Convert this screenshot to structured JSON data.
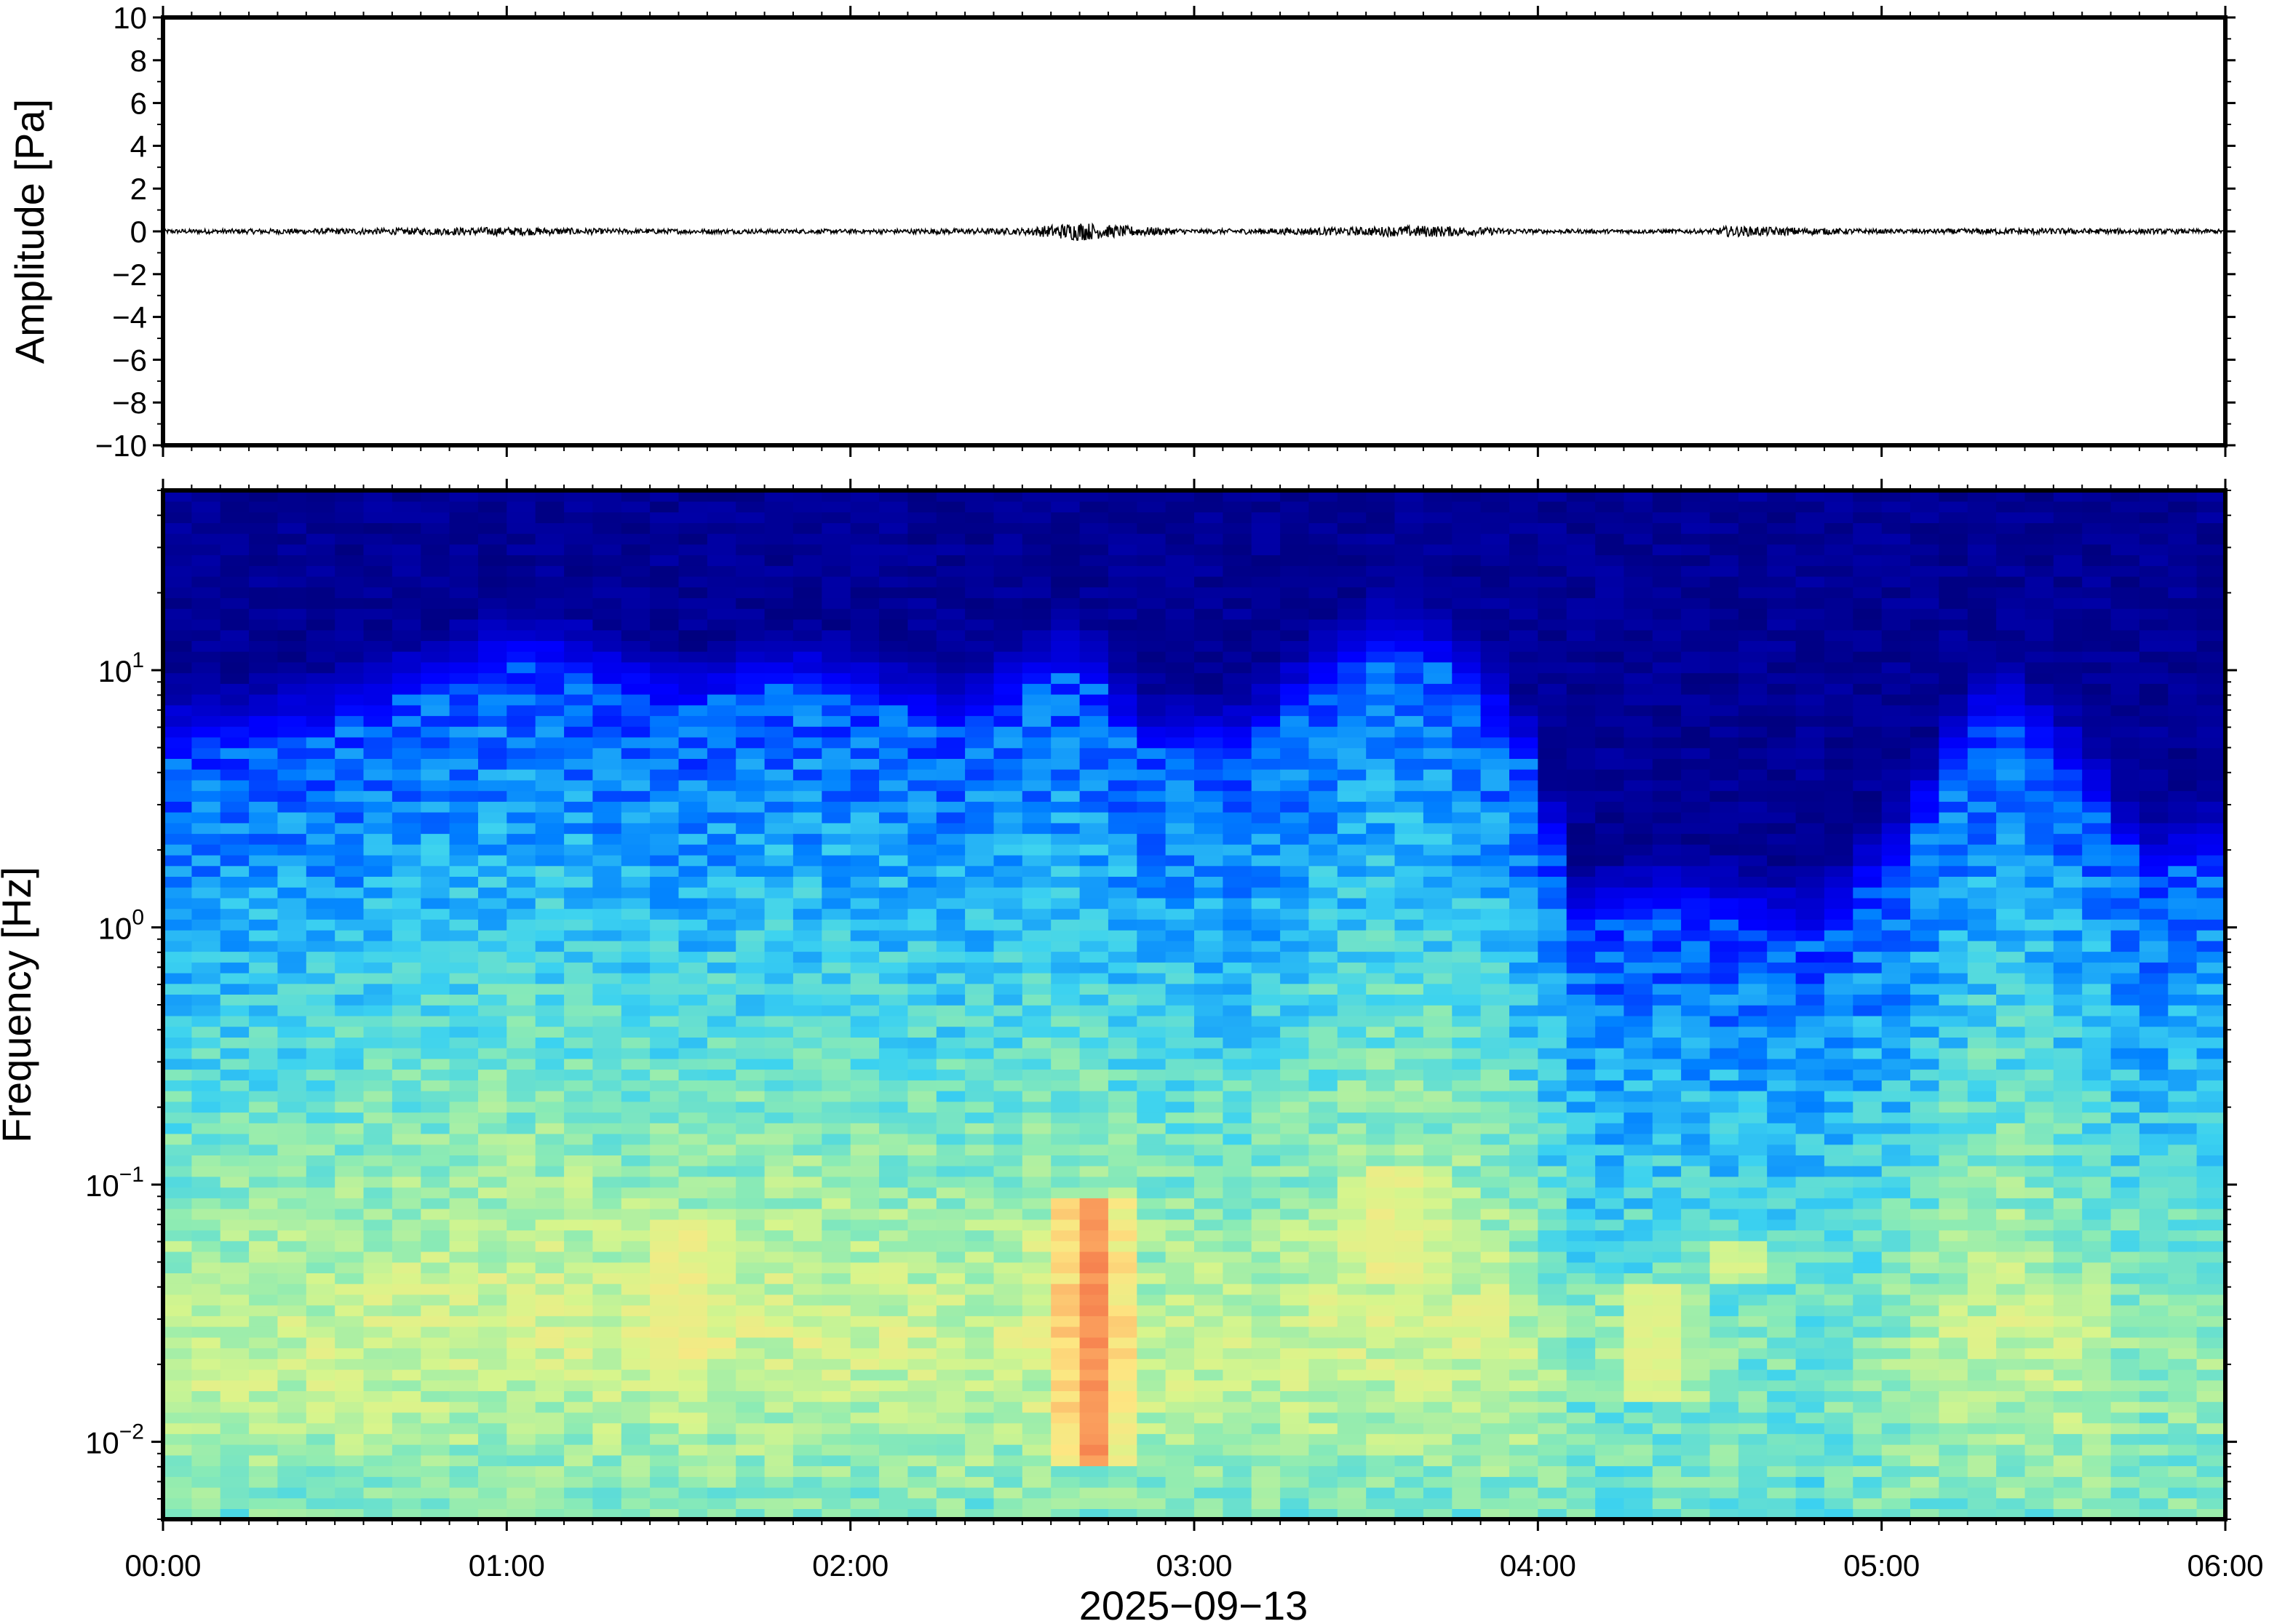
{
  "chart_data": [
    {
      "type": "line",
      "panel": "waveform",
      "title": "",
      "ylabel": "Amplitude [Pa]",
      "ylim": [
        -10,
        10
      ],
      "yticks": [
        {
          "value": 10,
          "label": "10"
        },
        {
          "value": 8,
          "label": "8"
        },
        {
          "value": 6,
          "label": "6"
        },
        {
          "value": 4,
          "label": "4"
        },
        {
          "value": 2,
          "label": "2"
        },
        {
          "value": 0,
          "label": "0"
        },
        {
          "value": -2,
          "label": "−2"
        },
        {
          "value": -4,
          "label": "−4"
        },
        {
          "value": -6,
          "label": "−6"
        },
        {
          "value": -8,
          "label": "−8"
        },
        {
          "value": -10,
          "label": "−10"
        }
      ],
      "xlim": [
        "00:00",
        "06:00"
      ],
      "series": [
        {
          "color": "#000000",
          "envelope": [
            {
              "x": "00:00",
              "amp": 0.1
            },
            {
              "x": "00:40",
              "amp": 0.15
            },
            {
              "x": "01:00",
              "amp": 0.2
            },
            {
              "x": "01:20",
              "amp": 0.12
            },
            {
              "x": "02:00",
              "amp": 0.1
            },
            {
              "x": "02:30",
              "amp": 0.15
            },
            {
              "x": "02:40",
              "amp": 0.45
            },
            {
              "x": "02:45",
              "amp": 0.3
            },
            {
              "x": "03:00",
              "amp": 0.1
            },
            {
              "x": "03:30",
              "amp": 0.2
            },
            {
              "x": "03:40",
              "amp": 0.28
            },
            {
              "x": "04:00",
              "amp": 0.1
            },
            {
              "x": "04:30",
              "amp": 0.1
            },
            {
              "x": "04:33",
              "amp": 0.25
            },
            {
              "x": "05:00",
              "amp": 0.1
            },
            {
              "x": "05:25",
              "amp": 0.15
            },
            {
              "x": "06:00",
              "amp": 0.1
            }
          ]
        }
      ]
    },
    {
      "type": "heatmap",
      "panel": "spectrogram",
      "title": "",
      "ylabel": "Frequency [Hz]",
      "yscale": "log",
      "ylim": [
        0.005,
        50
      ],
      "yticks": [
        {
          "value": 10,
          "base": "10",
          "exp": "1"
        },
        {
          "value": 1,
          "base": "10",
          "exp": "0"
        },
        {
          "value": 0.1,
          "base": "10",
          "exp": "−1"
        },
        {
          "value": 0.01,
          "base": "10",
          "exp": "−2"
        }
      ],
      "xlabel": "2025−09−13",
      "xlim": [
        "00:00",
        "06:00"
      ],
      "xticks": [
        "00:00",
        "01:00",
        "02:00",
        "03:00",
        "04:00",
        "05:00",
        "06:00"
      ],
      "colormap": [
        "#00007f",
        "#0000ff",
        "#0080ff",
        "#3cd2f0",
        "#8cebb4",
        "#d7f58c",
        "#fde682",
        "#fba560",
        "#f05a3c"
      ],
      "noise_cutoff_hz": [
        {
          "x": "00:00",
          "f": 5
        },
        {
          "x": "00:30",
          "f": 6
        },
        {
          "x": "01:05",
          "f": 11
        },
        {
          "x": "01:30",
          "f": 7
        },
        {
          "x": "01:50",
          "f": 9
        },
        {
          "x": "02:20",
          "f": 6
        },
        {
          "x": "02:40",
          "f": 10
        },
        {
          "x": "02:50",
          "f": 5
        },
        {
          "x": "03:10",
          "f": 5
        },
        {
          "x": "03:35",
          "f": 13
        },
        {
          "x": "03:50",
          "f": 8
        },
        {
          "x": "04:05",
          "f": 1
        },
        {
          "x": "04:25",
          "f": 1.2
        },
        {
          "x": "04:50",
          "f": 0.9
        },
        {
          "x": "05:05",
          "f": 2
        },
        {
          "x": "05:20",
          "f": 7
        },
        {
          "x": "05:45",
          "f": 1.5
        },
        {
          "x": "06:00",
          "f": 2
        }
      ],
      "hot_spots": [
        {
          "x": "02:42",
          "f_low": 0.008,
          "f_high": 0.09,
          "level": 0.92
        },
        {
          "x": "01:30",
          "f_low": 0.02,
          "f_high": 0.07,
          "level": 0.72
        },
        {
          "x": "03:35",
          "f_low": 0.04,
          "f_high": 0.12,
          "level": 0.7
        },
        {
          "x": "04:20",
          "f_low": 0.015,
          "f_high": 0.04,
          "level": 0.7
        },
        {
          "x": "04:35",
          "f_low": 0.04,
          "f_high": 0.06,
          "level": 0.66
        }
      ]
    }
  ]
}
